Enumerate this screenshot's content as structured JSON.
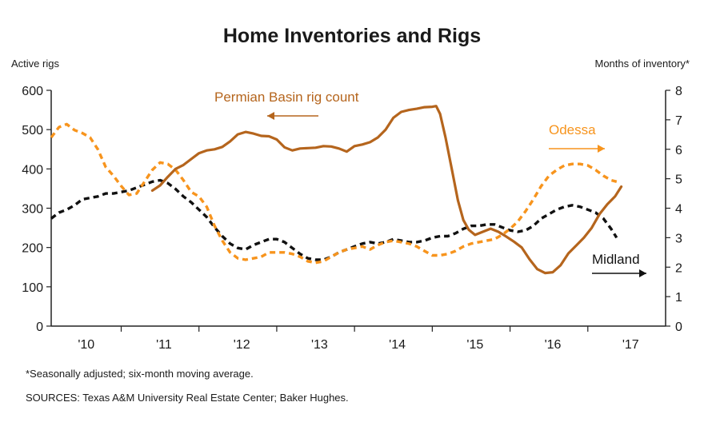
{
  "chart_data": {
    "type": "line",
    "title": "Home Inventories and Rigs",
    "y_left_label": "Active rigs",
    "y_right_label": "Months of inventory*",
    "ylim_left": [
      0,
      600
    ],
    "ylim_right": [
      0,
      8
    ],
    "y_left_ticks": [
      "0",
      "100",
      "200",
      "300",
      "400",
      "500",
      "600"
    ],
    "y_right_ticks": [
      "0",
      "1",
      "2",
      "3",
      "4",
      "5",
      "6",
      "7",
      "8"
    ],
    "x_ticks": [
      {
        "value": 2010,
        "label": "'10"
      },
      {
        "value": 2011,
        "label": "'11"
      },
      {
        "value": 2012,
        "label": "'12"
      },
      {
        "value": 2013,
        "label": "'13"
      },
      {
        "value": 2014,
        "label": "'14"
      },
      {
        "value": 2015,
        "label": "'15"
      },
      {
        "value": 2016,
        "label": "'16"
      },
      {
        "value": 2017,
        "label": "'17"
      }
    ],
    "xlim": [
      2009.55,
      2017.45
    ],
    "series": [
      {
        "name": "Permian Basin rig count",
        "axis": "left",
        "color": "#b5651d",
        "dash": "solid",
        "points": [
          [
            2010.85,
            345
          ],
          [
            2010.95,
            358
          ],
          [
            2011.05,
            380
          ],
          [
            2011.15,
            400
          ],
          [
            2011.25,
            410
          ],
          [
            2011.35,
            425
          ],
          [
            2011.45,
            440
          ],
          [
            2011.55,
            447
          ],
          [
            2011.65,
            450
          ],
          [
            2011.75,
            456
          ],
          [
            2011.85,
            470
          ],
          [
            2011.95,
            488
          ],
          [
            2012.05,
            494
          ],
          [
            2012.15,
            490
          ],
          [
            2012.25,
            484
          ],
          [
            2012.35,
            483
          ],
          [
            2012.45,
            475
          ],
          [
            2012.55,
            455
          ],
          [
            2012.65,
            447
          ],
          [
            2012.75,
            452
          ],
          [
            2012.85,
            453
          ],
          [
            2012.95,
            454
          ],
          [
            2013.05,
            458
          ],
          [
            2013.15,
            457
          ],
          [
            2013.25,
            452
          ],
          [
            2013.35,
            444
          ],
          [
            2013.45,
            458
          ],
          [
            2013.55,
            462
          ],
          [
            2013.65,
            468
          ],
          [
            2013.75,
            480
          ],
          [
            2013.85,
            500
          ],
          [
            2013.95,
            530
          ],
          [
            2014.05,
            545
          ],
          [
            2014.15,
            550
          ],
          [
            2014.25,
            553
          ],
          [
            2014.35,
            557
          ],
          [
            2014.45,
            558
          ],
          [
            2014.5,
            560
          ],
          [
            2014.55,
            540
          ],
          [
            2014.62,
            480
          ],
          [
            2014.7,
            400
          ],
          [
            2014.78,
            320
          ],
          [
            2014.85,
            270
          ],
          [
            2014.92,
            245
          ],
          [
            2015.0,
            232
          ],
          [
            2015.1,
            240
          ],
          [
            2015.2,
            248
          ],
          [
            2015.3,
            240
          ],
          [
            2015.4,
            228
          ],
          [
            2015.5,
            215
          ],
          [
            2015.6,
            200
          ],
          [
            2015.7,
            170
          ],
          [
            2015.8,
            145
          ],
          [
            2015.9,
            135
          ],
          [
            2016.0,
            137
          ],
          [
            2016.1,
            155
          ],
          [
            2016.2,
            185
          ],
          [
            2016.3,
            205
          ],
          [
            2016.4,
            225
          ],
          [
            2016.5,
            250
          ],
          [
            2016.6,
            285
          ],
          [
            2016.7,
            310
          ],
          [
            2016.8,
            330
          ],
          [
            2016.88,
            355
          ]
        ]
      },
      {
        "name": "Odessa",
        "axis": "right",
        "color": "#f7941d",
        "dash": "dashed",
        "points": [
          [
            2009.55,
            6.4
          ],
          [
            2009.65,
            6.75
          ],
          [
            2009.75,
            6.85
          ],
          [
            2009.85,
            6.65
          ],
          [
            2009.95,
            6.55
          ],
          [
            2010.05,
            6.4
          ],
          [
            2010.15,
            6.0
          ],
          [
            2010.25,
            5.4
          ],
          [
            2010.35,
            5.1
          ],
          [
            2010.45,
            4.75
          ],
          [
            2010.55,
            4.45
          ],
          [
            2010.65,
            4.5
          ],
          [
            2010.75,
            4.9
          ],
          [
            2010.85,
            5.3
          ],
          [
            2010.95,
            5.55
          ],
          [
            2011.05,
            5.5
          ],
          [
            2011.15,
            5.3
          ],
          [
            2011.25,
            4.95
          ],
          [
            2011.35,
            4.55
          ],
          [
            2011.45,
            4.4
          ],
          [
            2011.55,
            4.05
          ],
          [
            2011.65,
            3.4
          ],
          [
            2011.75,
            2.9
          ],
          [
            2011.85,
            2.5
          ],
          [
            2011.95,
            2.3
          ],
          [
            2012.05,
            2.25
          ],
          [
            2012.15,
            2.3
          ],
          [
            2012.25,
            2.35
          ],
          [
            2012.35,
            2.5
          ],
          [
            2012.45,
            2.5
          ],
          [
            2012.55,
            2.5
          ],
          [
            2012.65,
            2.45
          ],
          [
            2012.75,
            2.35
          ],
          [
            2012.85,
            2.2
          ],
          [
            2012.95,
            2.15
          ],
          [
            2013.05,
            2.2
          ],
          [
            2013.15,
            2.35
          ],
          [
            2013.25,
            2.5
          ],
          [
            2013.35,
            2.6
          ],
          [
            2013.45,
            2.65
          ],
          [
            2013.55,
            2.7
          ],
          [
            2013.65,
            2.6
          ],
          [
            2013.75,
            2.75
          ],
          [
            2013.85,
            2.85
          ],
          [
            2013.95,
            2.9
          ],
          [
            2014.05,
            2.85
          ],
          [
            2014.15,
            2.8
          ],
          [
            2014.25,
            2.7
          ],
          [
            2014.35,
            2.55
          ],
          [
            2014.45,
            2.4
          ],
          [
            2014.55,
            2.4
          ],
          [
            2014.65,
            2.45
          ],
          [
            2014.75,
            2.55
          ],
          [
            2014.85,
            2.7
          ],
          [
            2014.95,
            2.8
          ],
          [
            2015.05,
            2.85
          ],
          [
            2015.15,
            2.9
          ],
          [
            2015.25,
            2.95
          ],
          [
            2015.35,
            3.1
          ],
          [
            2015.45,
            3.3
          ],
          [
            2015.55,
            3.55
          ],
          [
            2015.65,
            3.9
          ],
          [
            2015.75,
            4.3
          ],
          [
            2015.85,
            4.75
          ],
          [
            2015.95,
            5.1
          ],
          [
            2016.05,
            5.3
          ],
          [
            2016.15,
            5.45
          ],
          [
            2016.25,
            5.5
          ],
          [
            2016.35,
            5.5
          ],
          [
            2016.45,
            5.45
          ],
          [
            2016.55,
            5.3
          ],
          [
            2016.65,
            5.1
          ],
          [
            2016.75,
            4.95
          ],
          [
            2016.82,
            4.9
          ]
        ]
      },
      {
        "name": "Midland",
        "axis": "right",
        "color": "#111111",
        "dash": "dashed",
        "points": [
          [
            2009.55,
            3.65
          ],
          [
            2009.65,
            3.85
          ],
          [
            2009.75,
            3.95
          ],
          [
            2009.85,
            4.1
          ],
          [
            2009.95,
            4.3
          ],
          [
            2010.05,
            4.35
          ],
          [
            2010.15,
            4.4
          ],
          [
            2010.25,
            4.5
          ],
          [
            2010.35,
            4.5
          ],
          [
            2010.45,
            4.55
          ],
          [
            2010.55,
            4.6
          ],
          [
            2010.65,
            4.7
          ],
          [
            2010.75,
            4.8
          ],
          [
            2010.85,
            4.9
          ],
          [
            2010.95,
            4.95
          ],
          [
            2011.05,
            4.85
          ],
          [
            2011.15,
            4.65
          ],
          [
            2011.25,
            4.4
          ],
          [
            2011.35,
            4.2
          ],
          [
            2011.45,
            3.95
          ],
          [
            2011.55,
            3.7
          ],
          [
            2011.65,
            3.35
          ],
          [
            2011.75,
            3.05
          ],
          [
            2011.85,
            2.8
          ],
          [
            2011.95,
            2.65
          ],
          [
            2012.05,
            2.6
          ],
          [
            2012.15,
            2.75
          ],
          [
            2012.25,
            2.85
          ],
          [
            2012.35,
            2.95
          ],
          [
            2012.45,
            2.95
          ],
          [
            2012.55,
            2.85
          ],
          [
            2012.65,
            2.65
          ],
          [
            2012.75,
            2.45
          ],
          [
            2012.85,
            2.3
          ],
          [
            2012.95,
            2.25
          ],
          [
            2013.05,
            2.25
          ],
          [
            2013.15,
            2.35
          ],
          [
            2013.25,
            2.5
          ],
          [
            2013.35,
            2.6
          ],
          [
            2013.45,
            2.7
          ],
          [
            2013.55,
            2.8
          ],
          [
            2013.65,
            2.85
          ],
          [
            2013.75,
            2.8
          ],
          [
            2013.85,
            2.85
          ],
          [
            2013.95,
            2.95
          ],
          [
            2014.05,
            2.9
          ],
          [
            2014.15,
            2.85
          ],
          [
            2014.25,
            2.85
          ],
          [
            2014.35,
            2.9
          ],
          [
            2014.45,
            3.0
          ],
          [
            2014.55,
            3.05
          ],
          [
            2014.65,
            3.05
          ],
          [
            2014.75,
            3.15
          ],
          [
            2014.85,
            3.3
          ],
          [
            2014.95,
            3.4
          ],
          [
            2015.05,
            3.4
          ],
          [
            2015.15,
            3.45
          ],
          [
            2015.25,
            3.45
          ],
          [
            2015.35,
            3.35
          ],
          [
            2015.45,
            3.25
          ],
          [
            2015.55,
            3.2
          ],
          [
            2015.65,
            3.25
          ],
          [
            2015.75,
            3.4
          ],
          [
            2015.85,
            3.65
          ],
          [
            2015.95,
            3.8
          ],
          [
            2016.05,
            3.95
          ],
          [
            2016.15,
            4.05
          ],
          [
            2016.25,
            4.1
          ],
          [
            2016.35,
            4.05
          ],
          [
            2016.45,
            3.95
          ],
          [
            2016.55,
            3.85
          ],
          [
            2016.65,
            3.65
          ],
          [
            2016.75,
            3.3
          ],
          [
            2016.82,
            3.0
          ]
        ]
      }
    ],
    "annotations": [
      {
        "text": "Permian Basin rig count",
        "color": "#b5651d",
        "arrow": "left"
      },
      {
        "text": "Odessa",
        "color": "#f7941d",
        "arrow": "right"
      },
      {
        "text": "Midland",
        "color": "#111111",
        "arrow": "right"
      }
    ]
  },
  "footnotes": {
    "note": "*Seasonally adjusted; six-month moving average.",
    "sources": "SOURCES: Texas A&M University Real Estate Center; Baker Hughes."
  }
}
